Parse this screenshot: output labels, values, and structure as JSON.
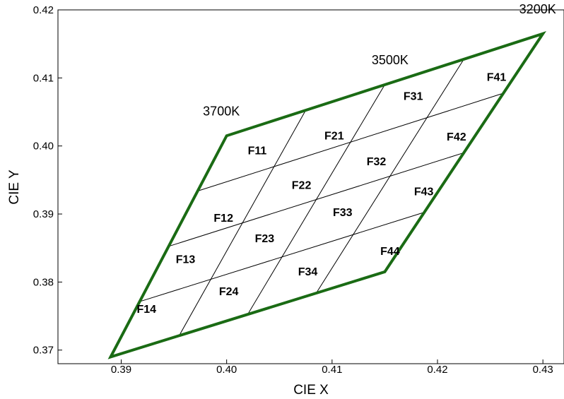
{
  "chart_data": {
    "type": "scatter",
    "title": "",
    "xlabel": "CIE X",
    "ylabel": "CIE Y",
    "xlim": [
      0.384,
      0.432
    ],
    "ylim": [
      0.368,
      0.42
    ],
    "x_ticks": [
      "0.39",
      "0.40",
      "0.41",
      "0.42",
      "0.43"
    ],
    "y_ticks": [
      "0.37",
      "0.38",
      "0.39",
      "0.40",
      "0.41",
      "0.42"
    ],
    "grid": false,
    "outline_color": "#1a6b14",
    "outline": {
      "corner_3700K": [
        0.4,
        0.4015
      ],
      "corner_3200K": [
        0.43,
        0.4165
      ],
      "corner_lower_right": [
        0.415,
        0.3815
      ],
      "corner_lower_left": [
        0.389,
        0.369
      ]
    },
    "cct_labels": [
      {
        "text": "3700K",
        "x": 0.3995,
        "y": 0.4045
      },
      {
        "text": "3500K",
        "x": 0.4155,
        "y": 0.412
      },
      {
        "text": "3200K",
        "x": 0.4295,
        "y": 0.4195
      }
    ],
    "bins": [
      {
        "label": "F11",
        "x": 0.4029,
        "y": 0.3994
      },
      {
        "label": "F12",
        "x": 0.3997,
        "y": 0.3895
      },
      {
        "label": "F13",
        "x": 0.3961,
        "y": 0.3834
      },
      {
        "label": "F14",
        "x": 0.3924,
        "y": 0.3761
      },
      {
        "label": "F21",
        "x": 0.4102,
        "y": 0.4016
      },
      {
        "label": "F22",
        "x": 0.4071,
        "y": 0.3943
      },
      {
        "label": "F23",
        "x": 0.4036,
        "y": 0.3865
      },
      {
        "label": "F24",
        "x": 0.4002,
        "y": 0.3787
      },
      {
        "label": "F31",
        "x": 0.4177,
        "y": 0.4074
      },
      {
        "label": "F32",
        "x": 0.4142,
        "y": 0.3978
      },
      {
        "label": "F33",
        "x": 0.411,
        "y": 0.3903
      },
      {
        "label": "F34",
        "x": 0.4077,
        "y": 0.3816
      },
      {
        "label": "F41",
        "x": 0.4256,
        "y": 0.4102
      },
      {
        "label": "F42",
        "x": 0.4218,
        "y": 0.4014
      },
      {
        "label": "F43",
        "x": 0.4187,
        "y": 0.3934
      },
      {
        "label": "F44",
        "x": 0.4155,
        "y": 0.3846
      }
    ]
  }
}
